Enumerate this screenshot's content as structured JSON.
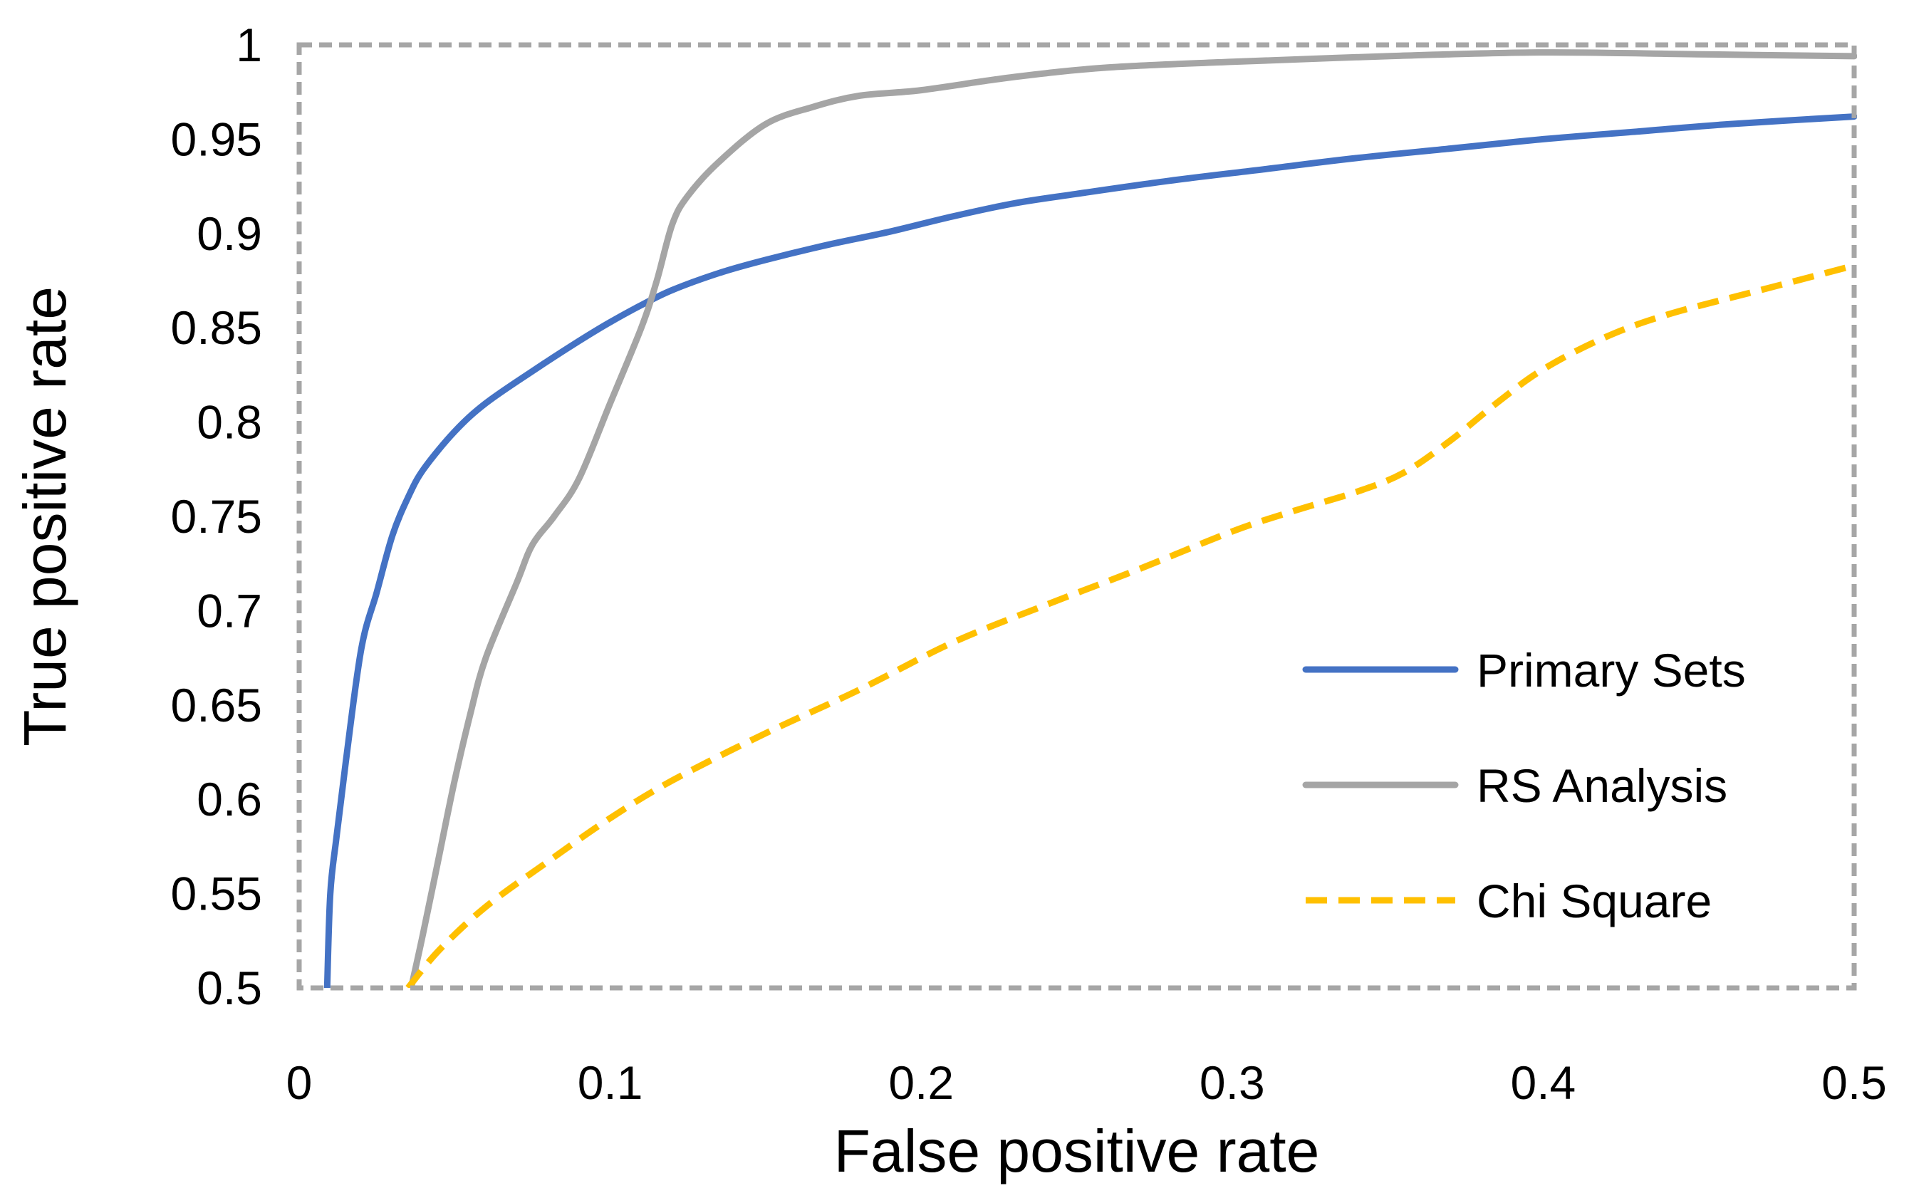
{
  "chart_data": {
    "type": "line",
    "title": "",
    "xlabel": "False positive rate",
    "ylabel": "True positive rate",
    "xlim": [
      0,
      0.5
    ],
    "ylim": [
      0.5,
      1
    ],
    "grid": false,
    "legend_position": "bottom-right",
    "x_ticks": [
      "0",
      "0.1",
      "0.2",
      "0.3",
      "0.4",
      "0.5"
    ],
    "y_ticks": [
      "0.5",
      "0.55",
      "0.6",
      "0.65",
      "0.7",
      "0.75",
      "0.8",
      "0.85",
      "0.9",
      "0.95",
      "1"
    ],
    "series": [
      {
        "name": "Primary Sets",
        "color": "#4472C4",
        "dash": "solid",
        "points": [
          [
            0.009,
            0.5
          ],
          [
            0.01,
            0.55
          ],
          [
            0.012,
            0.58
          ],
          [
            0.015,
            0.62
          ],
          [
            0.02,
            0.68
          ],
          [
            0.025,
            0.71
          ],
          [
            0.03,
            0.74
          ],
          [
            0.035,
            0.76
          ],
          [
            0.04,
            0.775
          ],
          [
            0.05,
            0.795
          ],
          [
            0.06,
            0.81
          ],
          [
            0.075,
            0.827
          ],
          [
            0.09,
            0.843
          ],
          [
            0.1,
            0.853
          ],
          [
            0.11,
            0.862
          ],
          [
            0.12,
            0.87
          ],
          [
            0.135,
            0.879
          ],
          [
            0.15,
            0.886
          ],
          [
            0.17,
            0.894
          ],
          [
            0.19,
            0.901
          ],
          [
            0.21,
            0.909
          ],
          [
            0.23,
            0.916
          ],
          [
            0.25,
            0.921
          ],
          [
            0.28,
            0.928
          ],
          [
            0.31,
            0.934
          ],
          [
            0.34,
            0.94
          ],
          [
            0.37,
            0.945
          ],
          [
            0.4,
            0.95
          ],
          [
            0.43,
            0.954
          ],
          [
            0.46,
            0.958
          ],
          [
            0.5,
            0.962
          ]
        ]
      },
      {
        "name": "RS Analysis",
        "color": "#A5A5A5",
        "dash": "solid",
        "points": [
          [
            0.036,
            0.5
          ],
          [
            0.04,
            0.53
          ],
          [
            0.045,
            0.57
          ],
          [
            0.05,
            0.61
          ],
          [
            0.055,
            0.645
          ],
          [
            0.06,
            0.675
          ],
          [
            0.07,
            0.715
          ],
          [
            0.075,
            0.735
          ],
          [
            0.082,
            0.75
          ],
          [
            0.09,
            0.77
          ],
          [
            0.1,
            0.81
          ],
          [
            0.11,
            0.85
          ],
          [
            0.115,
            0.875
          ],
          [
            0.12,
            0.905
          ],
          [
            0.125,
            0.92
          ],
          [
            0.135,
            0.938
          ],
          [
            0.15,
            0.958
          ],
          [
            0.165,
            0.967
          ],
          [
            0.18,
            0.973
          ],
          [
            0.2,
            0.976
          ],
          [
            0.23,
            0.983
          ],
          [
            0.26,
            0.988
          ],
          [
            0.3,
            0.991
          ],
          [
            0.35,
            0.994
          ],
          [
            0.4,
            0.996
          ],
          [
            0.45,
            0.995
          ],
          [
            0.5,
            0.994
          ]
        ]
      },
      {
        "name": "Chi Square",
        "color": "#FFC000",
        "dash": "dashed",
        "points": [
          [
            0.035,
            0.5
          ],
          [
            0.045,
            0.52
          ],
          [
            0.06,
            0.543
          ],
          [
            0.08,
            0.567
          ],
          [
            0.1,
            0.59
          ],
          [
            0.12,
            0.61
          ],
          [
            0.15,
            0.635
          ],
          [
            0.18,
            0.658
          ],
          [
            0.21,
            0.683
          ],
          [
            0.24,
            0.703
          ],
          [
            0.27,
            0.722
          ],
          [
            0.3,
            0.742
          ],
          [
            0.32,
            0.753
          ],
          [
            0.34,
            0.763
          ],
          [
            0.355,
            0.773
          ],
          [
            0.37,
            0.79
          ],
          [
            0.385,
            0.81
          ],
          [
            0.4,
            0.828
          ],
          [
            0.42,
            0.845
          ],
          [
            0.44,
            0.857
          ],
          [
            0.47,
            0.87
          ],
          [
            0.5,
            0.883
          ]
        ]
      }
    ]
  }
}
